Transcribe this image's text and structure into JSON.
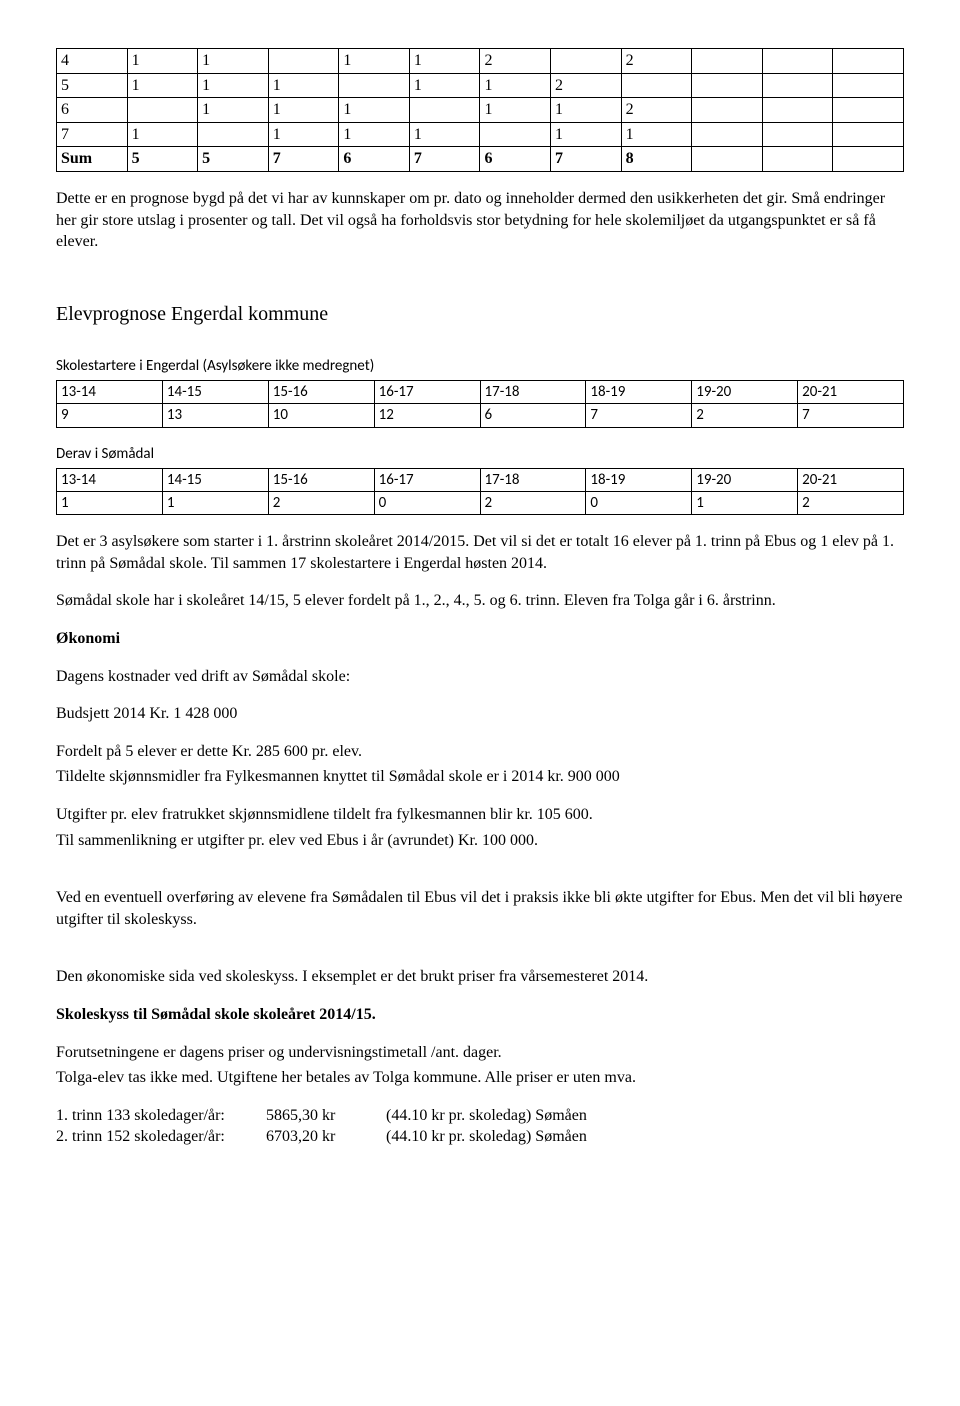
{
  "table1": {
    "rows": [
      [
        "4",
        "1",
        "1",
        "",
        "1",
        "1",
        "2",
        "",
        "2",
        "",
        "",
        ""
      ],
      [
        "5",
        "1",
        "1",
        "1",
        "",
        "1",
        "1",
        "2",
        "",
        "",
        "",
        ""
      ],
      [
        "6",
        "",
        "1",
        "1",
        "1",
        "",
        "1",
        "1",
        "2",
        "",
        "",
        ""
      ],
      [
        "7",
        "1",
        "",
        "1",
        "1",
        "1",
        "",
        "1",
        "1",
        "",
        "",
        ""
      ],
      [
        "Sum",
        "5",
        "5",
        "7",
        "6",
        "7",
        "6",
        "7",
        "8",
        "",
        "",
        ""
      ]
    ],
    "bold_last": true
  },
  "para1": [
    "Dette er en prognose bygd på det vi har av kunnskaper om pr. dato og inneholder dermed den usikkerheten det gir. Små endringer her gir store utslag i prosenter og tall. Det vil også ha forholdsvis stor betydning for hele skolemiljøet da utgangspunktet er så få elever."
  ],
  "heading1": "Elevprognose Engerdal kommune",
  "t2_caption": "Skolestartere i Engerdal (Asylsøkere ikke medregnet)",
  "t2": {
    "header": [
      "13-14",
      "14-15",
      "15-16",
      "16-17",
      "17-18",
      "18-19",
      "19-20",
      "20-21"
    ],
    "row": [
      "9",
      "13",
      "10",
      "12",
      "6",
      "7",
      "2",
      "7"
    ]
  },
  "t3_caption": "Derav i Sømådal",
  "t3": {
    "header": [
      "13-14",
      "14-15",
      "15-16",
      "16-17",
      "17-18",
      "18-19",
      "19-20",
      "20-21"
    ],
    "row": [
      "1",
      "1",
      "2",
      "0",
      "2",
      "0",
      "1",
      "2"
    ]
  },
  "para2": "Det er 3 asylsøkere som starter i 1. årstrinn skoleåret 2014/2015. Det vil si det er totalt 16 elever på 1. trinn på Ebus og 1 elev på 1. trinn på Sømådal skole. Til sammen 17 skolestartere i Engerdal høsten 2014.",
  "para3": "Sømådal skole har i skoleåret 14/15, 5 elever fordelt på 1., 2., 4., 5. og 6. trinn. Eleven fra Tolga går i 6. årstrinn.",
  "heading_okonomi": "Økonomi",
  "para4": "Dagens kostnader ved drift av Sømådal skole:",
  "para5": "Budsjett 2014 Kr. 1 428 000",
  "para6a": "Fordelt på 5 elever er dette Kr. 285 600 pr. elev.",
  "para6b": "Tildelte skjønnsmidler fra Fylkesmannen knyttet til Sømådal skole er i 2014 kr. 900 000",
  "para7a": "Utgifter pr. elev fratrukket skjønnsmidlene tildelt fra fylkesmannen blir kr. 105 600.",
  "para7b": "Til sammenlikning er utgifter pr. elev ved Ebus i år (avrundet) Kr. 100 000.",
  "para8": "Ved en eventuell overføring av elevene fra Sømådalen til Ebus vil det i praksis ikke bli økte utgifter for Ebus. Men det vil bli høyere utgifter til skoleskyss.",
  "para9": "Den økonomiske sida ved skoleskyss. I eksemplet er det brukt priser fra vårsemesteret 2014.",
  "heading_skyss": "Skoleskyss til Sømådal skole skoleåret 2014/15.",
  "para10a": "Forutsetningene er dagens priser og undervisningstimetall /ant. dager.",
  "para10b": "Tolga-elev tas ikke med.  Utgiftene her betales av Tolga kommune.  Alle priser er uten mva.",
  "trinn1": {
    "c1": "1. trinn 133 skoledager/år:",
    "c2": "5865,30 kr",
    "c3": "(44.10 kr pr. skoledag)  Sømåen"
  },
  "trinn2": {
    "c1": "2. trinn 152 skoledager/år:",
    "c2": "6703,20 kr",
    "c3": "(44.10 kr pr. skoledag)  Sømåen"
  }
}
